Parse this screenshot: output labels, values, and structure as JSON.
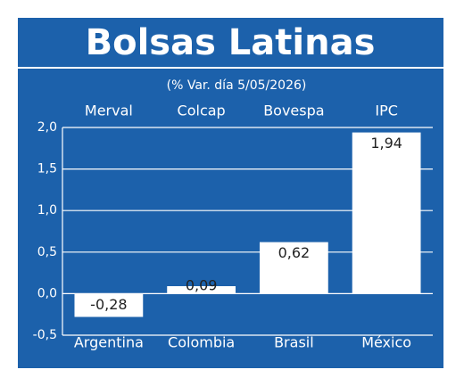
{
  "chart_data": {
    "type": "bar",
    "title": "Bolsas Latinas",
    "subtitle": "(% Var. día 5/05/2026)",
    "indices": [
      "Merval",
      "Colcap",
      "Bovespa",
      "IPC"
    ],
    "categories": [
      "Argentina",
      "Colombia",
      "Brasil",
      "México"
    ],
    "values": [
      -0.28,
      0.09,
      0.62,
      1.94
    ],
    "value_labels": [
      "-0,28",
      "0,09",
      "0,62",
      "1,94"
    ],
    "color": "#ffffff",
    "background": "#1c61ab",
    "ylim": [
      -0.5,
      2.0
    ],
    "yticks": [
      {
        "value": -0.5,
        "label": "-0,5"
      },
      {
        "value": 0,
        "label": "0,0"
      },
      {
        "value": 0.5,
        "label": "0,5"
      },
      {
        "value": 1,
        "label": "1,0"
      },
      {
        "value": 1.5,
        "label": "1,5"
      },
      {
        "value": 2,
        "label": "2,0"
      }
    ],
    "grid": true
  }
}
